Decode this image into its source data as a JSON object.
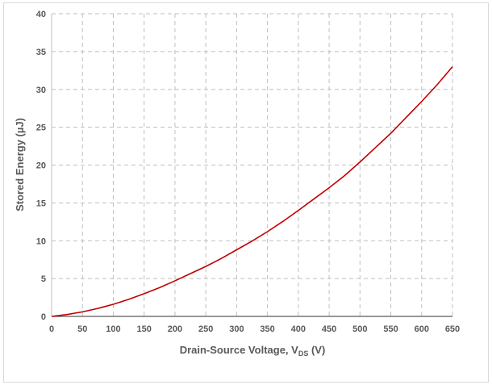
{
  "chart_data": {
    "type": "line",
    "title": "",
    "xlabel_main": "Drain-Source Voltage, V",
    "xlabel_sub": "DS",
    "xlabel_unit": " (V)",
    "ylabel": "Stored Energy (µJ)",
    "xlim": [
      0,
      650
    ],
    "ylim": [
      0,
      40
    ],
    "xticks": [
      0,
      50,
      100,
      150,
      200,
      250,
      300,
      350,
      400,
      450,
      500,
      550,
      600,
      650
    ],
    "yticks": [
      0,
      5,
      10,
      15,
      20,
      25,
      30,
      35,
      40
    ],
    "grid": true,
    "line_color": "#c00000",
    "series": [
      {
        "x": [
          0,
          25,
          50,
          75,
          100,
          125,
          150,
          175,
          200,
          225,
          250,
          275,
          300,
          325,
          350,
          375,
          400,
          425,
          450,
          475,
          500,
          525,
          550,
          575,
          600,
          625,
          650
        ],
        "y": [
          0,
          0.25,
          0.6,
          1.05,
          1.6,
          2.25,
          3.0,
          3.8,
          4.7,
          5.65,
          6.6,
          7.65,
          8.8,
          9.95,
          11.2,
          12.55,
          14.0,
          15.5,
          17.0,
          18.6,
          20.4,
          22.3,
          24.2,
          26.3,
          28.4,
          30.6,
          33.0
        ]
      }
    ]
  }
}
